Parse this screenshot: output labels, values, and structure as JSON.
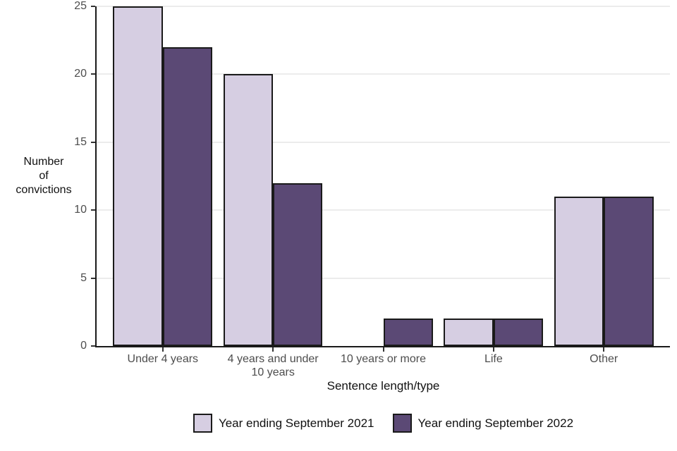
{
  "chart_data": {
    "type": "bar",
    "title": "",
    "categories": [
      "Under 4 years",
      "4 years and under\n10 years",
      "10 years or more",
      "Life",
      "Other"
    ],
    "series": [
      {
        "name": "Year ending September 2021",
        "color": "#d6cee2",
        "values": [
          25,
          20,
          0,
          2,
          11
        ]
      },
      {
        "name": "Year ending September 2022",
        "color": "#5b4975",
        "values": [
          22,
          12,
          2,
          2,
          11
        ]
      }
    ],
    "xlabel": "Sentence length/type",
    "ylabel": "Number\nof\nconvictions",
    "ylim": [
      0,
      25
    ],
    "yticks": [
      0,
      5,
      10,
      15,
      20,
      25
    ],
    "grid": "horizontal-major",
    "legend_position": "bottom",
    "colors": {
      "axis": "#1a1a1a",
      "gridline": "#ececec",
      "tick_label": "#4d4d4d",
      "bar_border": "#1a1a1a"
    }
  }
}
